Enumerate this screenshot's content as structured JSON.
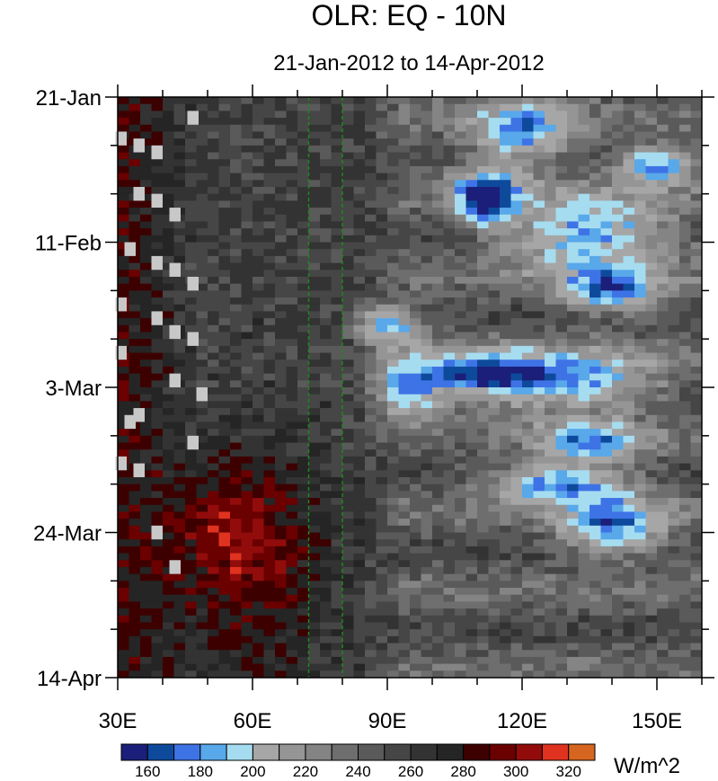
{
  "chart_data": {
    "type": "heatmap",
    "title": "OLR: EQ - 10N",
    "subtitle": "21-Jan-2012 to 14-Apr-2012",
    "x_ticks": [
      {
        "value": 30,
        "label": "30E"
      },
      {
        "value": 60,
        "label": "60E"
      },
      {
        "value": 90,
        "label": "90E"
      },
      {
        "value": 120,
        "label": "120E"
      },
      {
        "value": 150,
        "label": "150E"
      }
    ],
    "y_ticks": [
      {
        "value": 0,
        "label": "21-Jan"
      },
      {
        "value": 21,
        "label": "11-Feb"
      },
      {
        "value": 42,
        "label": "3-Mar"
      },
      {
        "value": 63,
        "label": "24-Mar"
      },
      {
        "value": 84,
        "label": "14-Apr"
      }
    ],
    "x_range": [
      30,
      160
    ],
    "y_range_days": [
      0,
      84
    ],
    "reference_lines_lon": [
      72.5,
      80
    ],
    "colorbar": {
      "unit": "W/m^2",
      "levels": [
        160,
        170,
        180,
        190,
        200,
        210,
        220,
        230,
        240,
        250,
        260,
        270,
        280,
        290,
        300,
        310,
        320
      ],
      "labels": [
        "160",
        "180",
        "200",
        "220",
        "240",
        "260",
        "280",
        "300",
        "320"
      ],
      "colors": [
        "#1b1f7a",
        "#0e4a9c",
        "#3e73e6",
        "#58a8ea",
        "#a6dcf0",
        "#a6a6a6",
        "#959595",
        "#848484",
        "#6e6e6e",
        "#5a5a5a",
        "#464646",
        "#333333",
        "#252525",
        "#3d0000",
        "#6a0000",
        "#920c0c",
        "#e0331f",
        "#d6661f"
      ]
    }
  }
}
